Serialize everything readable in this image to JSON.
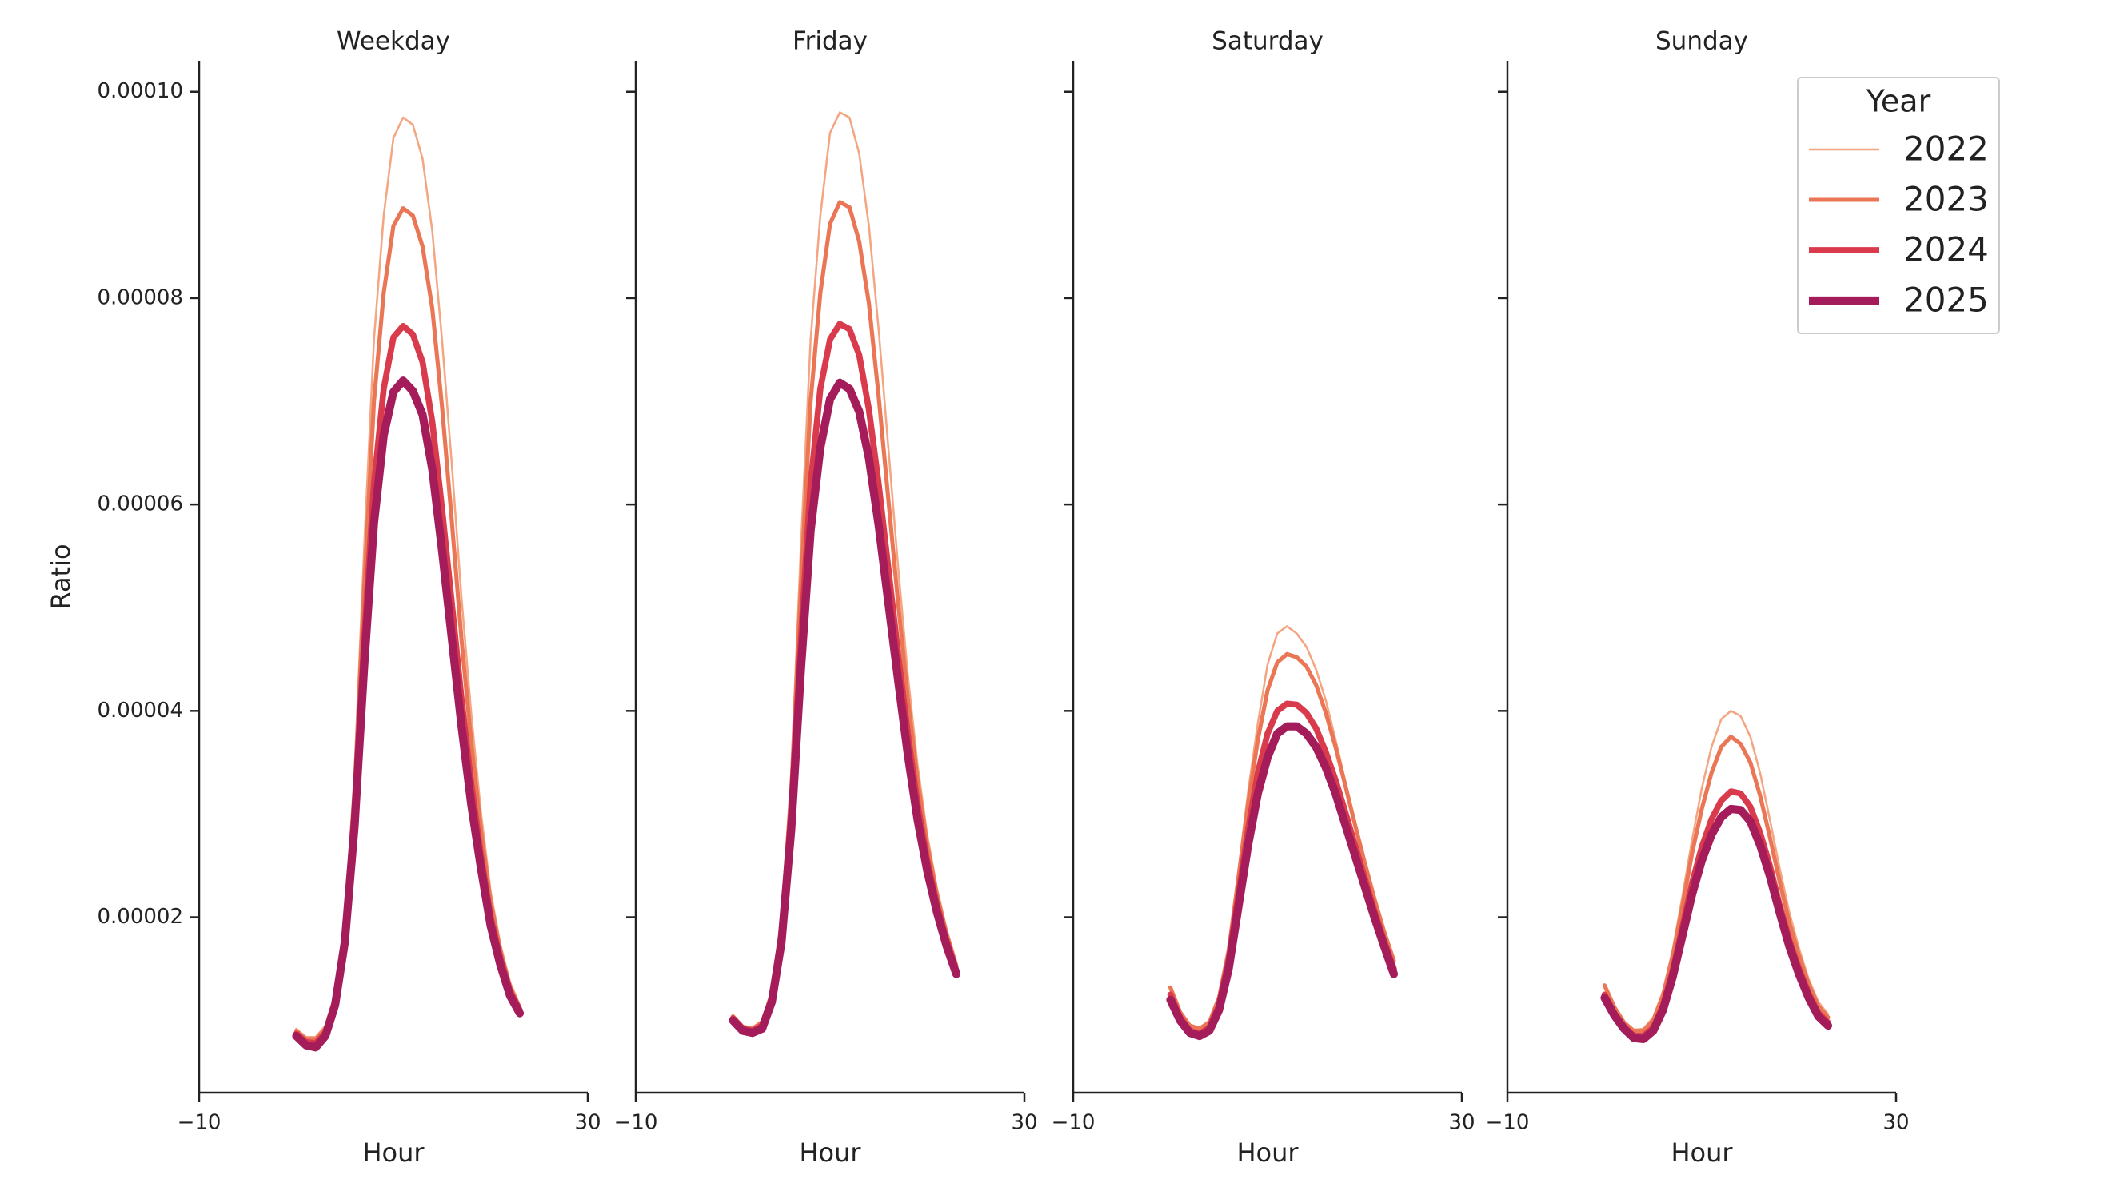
{
  "chart_data": [
    {
      "type": "line",
      "title": "Weekday",
      "xlabel": "Hour",
      "ylabel": "Ratio",
      "xlim": [
        -10,
        30
      ],
      "xticks": [
        {
          "value": -10,
          "label": "−10"
        },
        30
      ],
      "ylim": [
        3e-06,
        0.000103
      ],
      "yticks": [
        2e-05,
        4e-05,
        6e-05,
        8e-05,
        {
          "value": 0.0001,
          "label": "0.00010"
        }
      ],
      "legend_title": "Year",
      "legend": "upper right",
      "x": [
        0,
        1,
        2,
        3,
        4,
        5,
        6,
        7,
        8,
        9,
        10,
        11,
        12,
        13,
        14,
        15,
        16,
        17,
        18,
        19,
        20,
        21,
        22,
        23
      ],
      "series": [
        {
          "name": "2022",
          "color": "#f4a582",
          "linewidth": 1.5,
          "values": [
            9.2e-06,
            8.4e-06,
            8.4e-06,
            9.5e-06,
            1.26e-05,
            1.98e-05,
            3.4e-05,
            5.6e-05,
            7.6e-05,
            8.8e-05,
            9.55e-05,
            9.75e-05,
            9.68e-05,
            9.35e-05,
            8.65e-05,
            7.6e-05,
            6.4e-05,
            5.1e-05,
            3.98e-05,
            3.02e-05,
            2.25e-05,
            1.74e-05,
            1.37e-05,
            1.15e-05
          ]
        },
        {
          "name": "2023",
          "color": "#eb7655",
          "linewidth": 3,
          "values": [
            9e-06,
            8.2e-06,
            8.2e-06,
            9.2e-06,
            1.22e-05,
            1.9e-05,
            3.2e-05,
            5.2e-05,
            7e-05,
            8.05e-05,
            8.7e-05,
            8.87e-05,
            8.8e-05,
            8.5e-05,
            7.9e-05,
            6.95e-05,
            5.85e-05,
            4.7e-05,
            3.7e-05,
            2.85e-05,
            2.15e-05,
            1.68e-05,
            1.33e-05,
            1.12e-05
          ]
        },
        {
          "name": "2024",
          "color": "#d93a4c",
          "linewidth": 4.5,
          "values": [
            8.7e-06,
            7.9e-06,
            7.8e-06,
            8.8e-06,
            1.18e-05,
            1.82e-05,
            3e-05,
            4.7e-05,
            6.2e-05,
            7.12e-05,
            7.62e-05,
            7.73e-05,
            7.65e-05,
            7.38e-05,
            6.8e-05,
            5.96e-05,
            5.05e-05,
            4.12e-05,
            3.3e-05,
            2.6e-05,
            2e-05,
            1.6e-05,
            1.28e-05,
            1.1e-05
          ]
        },
        {
          "name": "2025",
          "color": "#a51c5b",
          "linewidth": 6,
          "values": [
            8.5e-06,
            7.6e-06,
            7.4e-06,
            8.5e-06,
            1.15e-05,
            1.76e-05,
            2.88e-05,
            4.45e-05,
            5.82e-05,
            6.67e-05,
            7.09e-05,
            7.2e-05,
            7.1e-05,
            6.87e-05,
            6.34e-05,
            5.56e-05,
            4.71e-05,
            3.86e-05,
            3.1e-05,
            2.48e-05,
            1.92e-05,
            1.54e-05,
            1.24e-05,
            1.07e-05
          ]
        }
      ]
    },
    {
      "type": "line",
      "title": "Friday",
      "xlabel": "Hour",
      "xlim": [
        -10,
        30
      ],
      "xticks": [
        {
          "value": -10,
          "label": "−10"
        },
        30
      ],
      "x": [
        0,
        1,
        2,
        3,
        4,
        5,
        6,
        7,
        8,
        9,
        10,
        11,
        12,
        13,
        14,
        15,
        16,
        17,
        18,
        19,
        20,
        21,
        22,
        23
      ],
      "series": [
        {
          "values": [
            1.05e-05,
            9.5e-06,
            9.3e-06,
            1e-05,
            1.3e-05,
            2e-05,
            3.4e-05,
            5.6e-05,
            7.6e-05,
            8.8e-05,
            9.6e-05,
            9.8e-05,
            9.75e-05,
            9.4e-05,
            8.7e-05,
            7.7e-05,
            6.55e-05,
            5.4e-05,
            4.35e-05,
            3.48e-05,
            2.8e-05,
            2.28e-05,
            1.88e-05,
            1.56e-05
          ]
        },
        {
          "values": [
            1.04e-05,
            9.4e-06,
            9.2e-06,
            9.8e-06,
            1.26e-05,
            1.92e-05,
            3.2e-05,
            5.2e-05,
            7e-05,
            8.05e-05,
            8.72e-05,
            8.93e-05,
            8.88e-05,
            8.55e-05,
            7.95e-05,
            7.05e-05,
            6.05e-05,
            5.05e-05,
            4.12e-05,
            3.33e-05,
            2.7e-05,
            2.22e-05,
            1.84e-05,
            1.53e-05
          ]
        },
        {
          "values": [
            1.02e-05,
            9.2e-06,
            9e-06,
            9.5e-06,
            1.22e-05,
            1.84e-05,
            3e-05,
            4.7e-05,
            6.2e-05,
            7.12e-05,
            7.6e-05,
            7.75e-05,
            7.7e-05,
            7.45e-05,
            6.92e-05,
            6.2e-05,
            5.38e-05,
            4.55e-05,
            3.78e-05,
            3.1e-05,
            2.55e-05,
            2.12e-05,
            1.77e-05,
            1.48e-05
          ]
        },
        {
          "values": [
            1e-05,
            9e-06,
            8.8e-06,
            9.2e-06,
            1.18e-05,
            1.76e-05,
            2.85e-05,
            4.4e-05,
            5.75e-05,
            6.55e-05,
            7.02e-05,
            7.18e-05,
            7.12e-05,
            6.9e-05,
            6.45e-05,
            5.8e-05,
            5.05e-05,
            4.3e-05,
            3.58e-05,
            2.95e-05,
            2.45e-05,
            2.05e-05,
            1.72e-05,
            1.45e-05
          ]
        }
      ]
    },
    {
      "type": "line",
      "title": "Saturday",
      "xlabel": "Hour",
      "xlim": [
        -10,
        30
      ],
      "xticks": [
        {
          "value": -10,
          "label": "−10"
        },
        30
      ],
      "x": [
        0,
        1,
        2,
        3,
        4,
        5,
        6,
        7,
        8,
        9,
        10,
        11,
        12,
        13,
        14,
        15,
        16,
        17,
        18,
        19,
        20,
        21,
        22,
        23
      ],
      "series": [
        {
          "values": [
            1.3e-05,
            1.07e-05,
            9.5e-06,
            9.3e-06,
            1e-05,
            1.25e-05,
            1.72e-05,
            2.45e-05,
            3.22e-05,
            3.88e-05,
            4.45e-05,
            4.75e-05,
            4.82e-05,
            4.75e-05,
            4.62e-05,
            4.4e-05,
            4.1e-05,
            3.72e-05,
            3.32e-05,
            2.92e-05,
            2.54e-05,
            2.18e-05,
            1.86e-05,
            1.6e-05
          ]
        },
        {
          "values": [
            1.32e-05,
            1.08e-05,
            9.5e-06,
            9.2e-06,
            9.8e-06,
            1.22e-05,
            1.68e-05,
            2.38e-05,
            3.1e-05,
            3.72e-05,
            4.2e-05,
            4.47e-05,
            4.55e-05,
            4.52e-05,
            4.43e-05,
            4.25e-05,
            3.98e-05,
            3.65e-05,
            3.28e-05,
            2.9e-05,
            2.53e-05,
            2.18e-05,
            1.86e-05,
            1.58e-05
          ]
        },
        {
          "values": [
            1.25e-05,
            1.03e-05,
            9e-06,
            8.7e-06,
            9.3e-06,
            1.15e-05,
            1.58e-05,
            2.22e-05,
            2.85e-05,
            3.4e-05,
            3.78e-05,
            4e-05,
            4.07e-05,
            4.06e-05,
            3.98e-05,
            3.83e-05,
            3.6e-05,
            3.33e-05,
            3.02e-05,
            2.7e-05,
            2.38e-05,
            2.06e-05,
            1.77e-05,
            1.5e-05
          ]
        },
        {
          "values": [
            1.2e-05,
            1e-05,
            8.8e-06,
            8.5e-06,
            9e-06,
            1.1e-05,
            1.5e-05,
            2.1e-05,
            2.7e-05,
            3.2e-05,
            3.55e-05,
            3.78e-05,
            3.85e-05,
            3.85e-05,
            3.78e-05,
            3.65e-05,
            3.45e-05,
            3.2e-05,
            2.9e-05,
            2.6e-05,
            2.3e-05,
            2e-05,
            1.72e-05,
            1.45e-05
          ]
        }
      ]
    },
    {
      "type": "line",
      "title": "Sunday",
      "xlabel": "Hour",
      "xlim": [
        -10,
        30
      ],
      "xticks": [
        {
          "value": -10,
          "label": "−10"
        },
        30
      ],
      "x": [
        0,
        1,
        2,
        3,
        4,
        5,
        6,
        7,
        8,
        9,
        10,
        11,
        12,
        13,
        14,
        15,
        16,
        17,
        18,
        19,
        20,
        21,
        22,
        23
      ],
      "series": [
        {
          "values": [
            1.32e-05,
            1.12e-05,
            9.8e-06,
            9.1e-06,
            9.2e-06,
            1.03e-05,
            1.28e-05,
            1.68e-05,
            2.2e-05,
            2.75e-05,
            3.25e-05,
            3.65e-05,
            3.92e-05,
            4e-05,
            3.95e-05,
            3.75e-05,
            3.4e-05,
            2.95e-05,
            2.48e-05,
            2.05e-05,
            1.7e-05,
            1.4e-05,
            1.18e-05,
            1.06e-05
          ]
        },
        {
          "values": [
            1.34e-05,
            1.13e-05,
            9.8e-06,
            9e-06,
            9e-06,
            1e-05,
            1.24e-05,
            1.62e-05,
            2.1e-05,
            2.62e-05,
            3.05e-05,
            3.4e-05,
            3.65e-05,
            3.75e-05,
            3.68e-05,
            3.5e-05,
            3.18e-05,
            2.78e-05,
            2.35e-05,
            1.95e-05,
            1.63e-05,
            1.35e-05,
            1.14e-05,
            1.03e-05
          ]
        },
        {
          "values": [
            1.25e-05,
            1.07e-05,
            9.4e-06,
            8.5e-06,
            8.5e-06,
            9.3e-06,
            1.14e-05,
            1.48e-05,
            1.9e-05,
            2.33e-05,
            2.68e-05,
            2.95e-05,
            3.13e-05,
            3.22e-05,
            3.2e-05,
            3.07e-05,
            2.82e-05,
            2.5e-05,
            2.12e-05,
            1.78e-05,
            1.5e-05,
            1.26e-05,
            1.07e-05,
            9.8e-06
          ]
        },
        {
          "values": [
            1.22e-05,
            1.05e-05,
            9.2e-06,
            8.3e-06,
            8.2e-06,
            9e-06,
            1.1e-05,
            1.42e-05,
            1.82e-05,
            2.22e-05,
            2.55e-05,
            2.8e-05,
            2.97e-05,
            3.05e-05,
            3.04e-05,
            2.93e-05,
            2.7e-05,
            2.4e-05,
            2.05e-05,
            1.72e-05,
            1.45e-05,
            1.22e-05,
            1.04e-05,
            9.5e-06
          ]
        }
      ]
    }
  ]
}
